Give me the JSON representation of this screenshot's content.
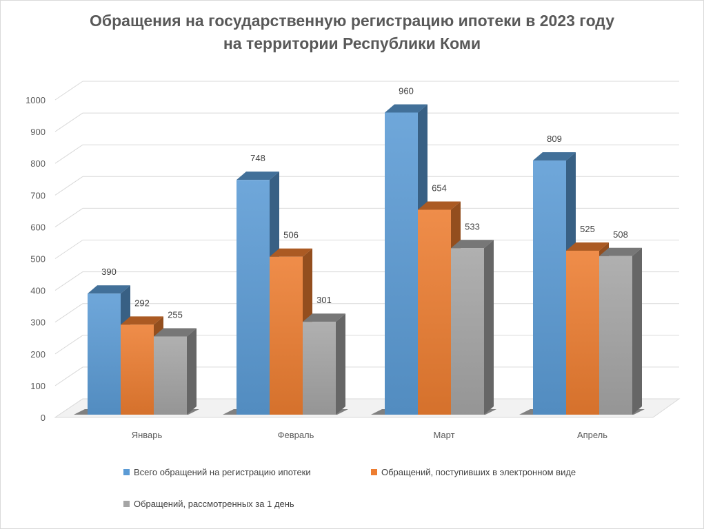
{
  "chart_data": {
    "type": "bar",
    "title_line1": "Обращения на государственную регистрацию ипотеки в 2023 году",
    "title_line2": "на территории Республики Коми",
    "categories": [
      "Январь",
      "Февраль",
      "Март",
      "Апрель"
    ],
    "series": [
      {
        "name": "Всего обращений на регистрацию ипотеки",
        "values": [
          390,
          748,
          960,
          809
        ],
        "color": "#5b9bd5"
      },
      {
        "name": "Обращений, поступивших в электронном виде",
        "values": [
          292,
          506,
          654,
          525
        ],
        "color": "#ed7d31"
      },
      {
        "name": "Обращений, рассмотренных за 1 день",
        "values": [
          255,
          301,
          533,
          508
        ],
        "color": "#a5a5a5"
      }
    ],
    "ylim": [
      0,
      1000
    ],
    "yticks": [
      0,
      100,
      200,
      300,
      400,
      500,
      600,
      700,
      800,
      900,
      1000
    ],
    "grid": true,
    "legend_position": "bottom",
    "three_d": true
  }
}
